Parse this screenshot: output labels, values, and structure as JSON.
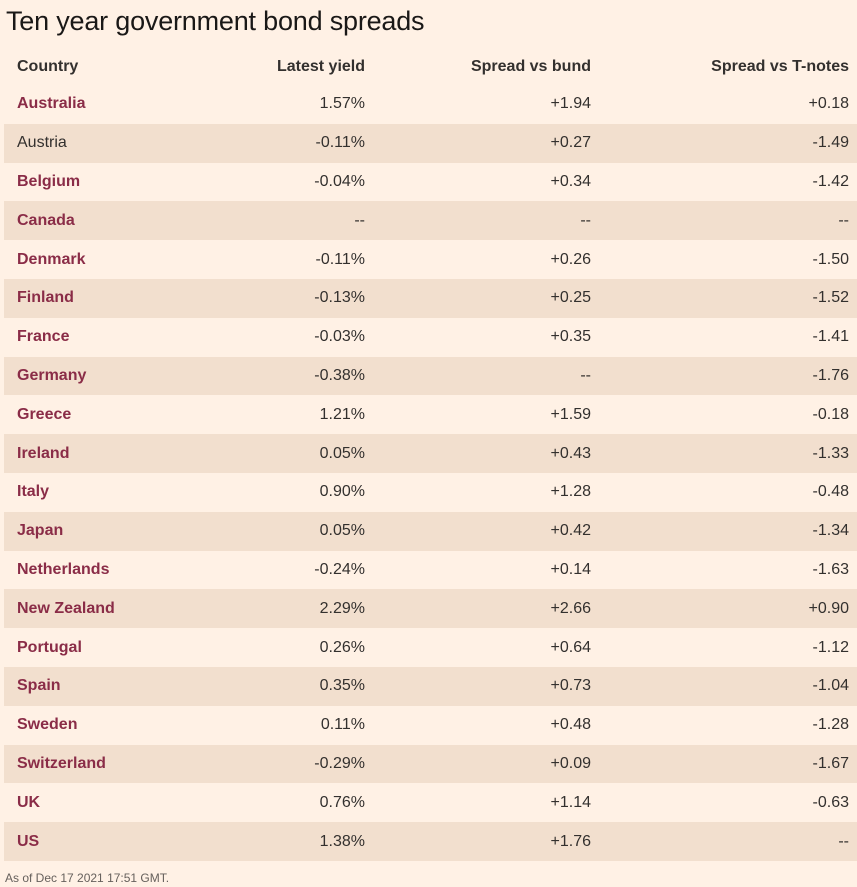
{
  "title": "Ten year government bond spreads",
  "headers": {
    "country": "Country",
    "latest_yield": "Latest yield",
    "spread_bund": "Spread vs bund",
    "spread_tnotes": "Spread vs T-notes"
  },
  "rows": [
    {
      "country": "Australia",
      "linked": true,
      "yield": "1.57%",
      "bund": "+1.94",
      "tnotes": "+0.18"
    },
    {
      "country": "Austria",
      "linked": false,
      "yield": "-0.11%",
      "bund": "+0.27",
      "tnotes": "-1.49"
    },
    {
      "country": "Belgium",
      "linked": true,
      "yield": "-0.04%",
      "bund": "+0.34",
      "tnotes": "-1.42"
    },
    {
      "country": "Canada",
      "linked": true,
      "yield": "--",
      "bund": "--",
      "tnotes": "--"
    },
    {
      "country": "Denmark",
      "linked": true,
      "yield": "-0.11%",
      "bund": "+0.26",
      "tnotes": "-1.50"
    },
    {
      "country": "Finland",
      "linked": true,
      "yield": "-0.13%",
      "bund": "+0.25",
      "tnotes": "-1.52"
    },
    {
      "country": "France",
      "linked": true,
      "yield": "-0.03%",
      "bund": "+0.35",
      "tnotes": "-1.41"
    },
    {
      "country": "Germany",
      "linked": true,
      "yield": "-0.38%",
      "bund": "--",
      "tnotes": "-1.76"
    },
    {
      "country": "Greece",
      "linked": true,
      "yield": "1.21%",
      "bund": "+1.59",
      "tnotes": "-0.18"
    },
    {
      "country": "Ireland",
      "linked": true,
      "yield": "0.05%",
      "bund": "+0.43",
      "tnotes": "-1.33"
    },
    {
      "country": "Italy",
      "linked": true,
      "yield": "0.90%",
      "bund": "+1.28",
      "tnotes": "-0.48"
    },
    {
      "country": "Japan",
      "linked": true,
      "yield": "0.05%",
      "bund": "+0.42",
      "tnotes": "-1.34"
    },
    {
      "country": "Netherlands",
      "linked": true,
      "yield": "-0.24%",
      "bund": "+0.14",
      "tnotes": "-1.63"
    },
    {
      "country": "New Zealand",
      "linked": true,
      "yield": "2.29%",
      "bund": "+2.66",
      "tnotes": "+0.90"
    },
    {
      "country": "Portugal",
      "linked": true,
      "yield": "0.26%",
      "bund": "+0.64",
      "tnotes": "-1.12"
    },
    {
      "country": "Spain",
      "linked": true,
      "yield": "0.35%",
      "bund": "+0.73",
      "tnotes": "-1.04"
    },
    {
      "country": "Sweden",
      "linked": true,
      "yield": "0.11%",
      "bund": "+0.48",
      "tnotes": "-1.28"
    },
    {
      "country": "Switzerland",
      "linked": true,
      "yield": "-0.29%",
      "bund": "+0.09",
      "tnotes": "-1.67"
    },
    {
      "country": "UK",
      "linked": true,
      "yield": "0.76%",
      "bund": "+1.14",
      "tnotes": "-0.63"
    },
    {
      "country": "US",
      "linked": true,
      "yield": "1.38%",
      "bund": "+1.76",
      "tnotes": "--"
    }
  ],
  "footnote": "As of Dec 17 2021 17:51 GMT.",
  "colors": {
    "background": "#fff1e5",
    "stripe": "#f2dfce",
    "link": "#8a2c47",
    "positive": "#458b00",
    "negative": "#cc0000"
  }
}
